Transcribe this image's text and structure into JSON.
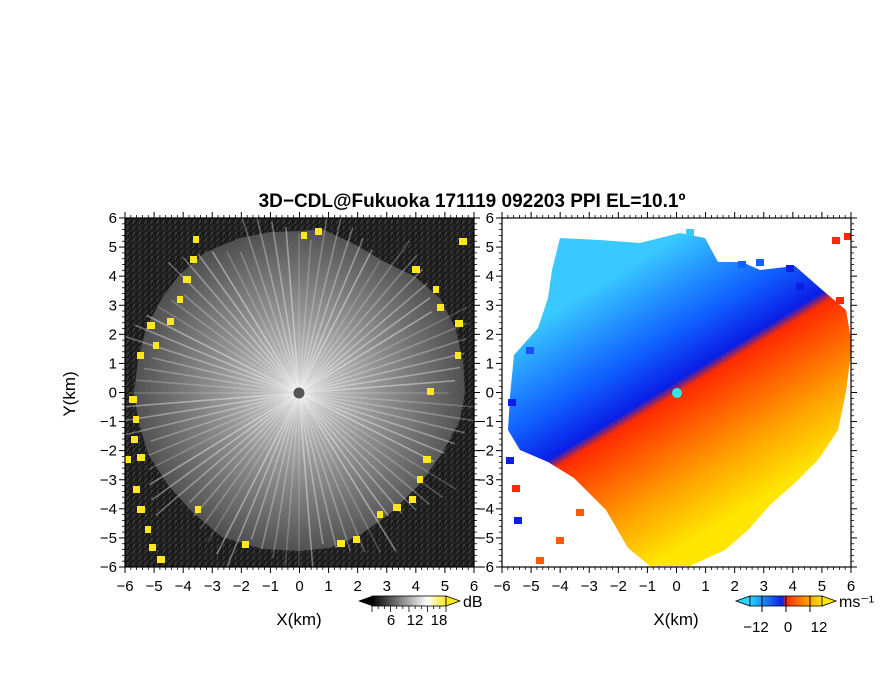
{
  "title": "3D−CDL@Fukuoka 171119 092203 PPI EL=10.1º",
  "chart_data": [
    {
      "type": "heatmap",
      "name": "reflectivity-ppi",
      "xlabel": "X(km)",
      "ylabel": "Y(km)",
      "xlim": [
        -6,
        6
      ],
      "ylim": [
        -6,
        6
      ],
      "xticks": [
        "−6",
        "−5",
        "−4",
        "−3",
        "−2",
        "−1",
        "0",
        "1",
        "2",
        "3",
        "4",
        "5",
        "6"
      ],
      "yticks": [
        "−6",
        "−5",
        "−4",
        "−3",
        "−2",
        "−1",
        "0",
        "1",
        "2",
        "3",
        "4",
        "5",
        "6"
      ],
      "colormap": "grayscale with yellow for high values",
      "colorbar": {
        "unit": "dB",
        "ticks": [
          "6",
          "12",
          "18"
        ],
        "range": [
          0,
          24
        ],
        "colors": [
          "#000000",
          "#ffffff",
          "#ffe81a"
        ]
      },
      "radar_site": [
        0,
        0
      ],
      "echo_radius_km": 5.6
    },
    {
      "type": "heatmap",
      "name": "doppler-velocity-ppi",
      "xlabel": "X(km)",
      "xlim": [
        -6,
        6
      ],
      "ylim": [
        -6,
        6
      ],
      "xticks": [
        "−6",
        "−5",
        "−4",
        "−3",
        "−2",
        "−1",
        "0",
        "1",
        "2",
        "3",
        "4",
        "5",
        "6"
      ],
      "yticks": [
        "−6",
        "−5",
        "−4",
        "−3",
        "−2",
        "−1",
        "0",
        "1",
        "2",
        "3",
        "4",
        "5",
        "6"
      ],
      "colormap": "cyan-blue (negative) to red-orange-yellow (positive)",
      "colorbar": {
        "unit": "ms⁻¹",
        "ticks": [
          "−12",
          "0",
          "12"
        ],
        "range": [
          -18,
          18
        ],
        "colors": [
          "#2ad4ff",
          "#0a1ee6",
          "#ff2a00",
          "#ffe600"
        ]
      },
      "radar_site": [
        0,
        0
      ],
      "velocity_zero_line_azimuth_deg": 55
    }
  ]
}
